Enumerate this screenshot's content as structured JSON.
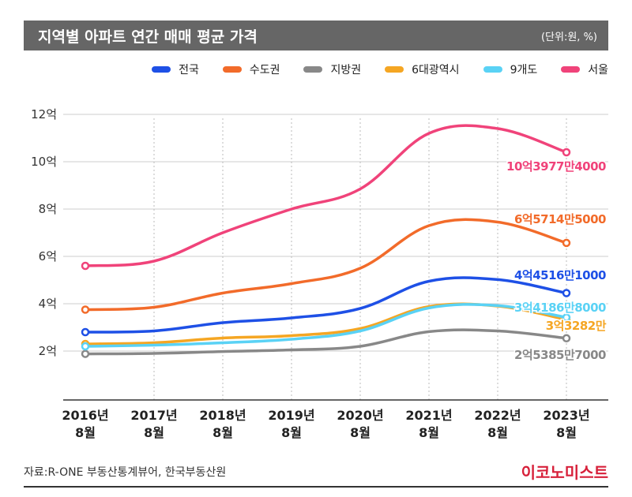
{
  "header": {
    "title": "지역별 아파트 연간 매매 평균 가격",
    "unit": "(단위:원, %)"
  },
  "footer": {
    "source": "자료:R-ONE 부동산통계뷰어, 한국부동산원",
    "brand": "이코노미스트"
  },
  "chart_data": {
    "type": "line",
    "title": "지역별 아파트 연간 매매 평균 가격",
    "legend_position": "top-right",
    "grid": true,
    "ylim": [
      0,
      12
    ],
    "y_ticks": [
      {
        "value": 2,
        "label": "2억"
      },
      {
        "value": 4,
        "label": "4억"
      },
      {
        "value": 6,
        "label": "6억"
      },
      {
        "value": 8,
        "label": "8억"
      },
      {
        "value": 10,
        "label": "10억"
      },
      {
        "value": 12,
        "label": "12억"
      }
    ],
    "categories": [
      {
        "year": "2016년",
        "month": "8월"
      },
      {
        "year": "2017년",
        "month": "8월"
      },
      {
        "year": "2018년",
        "month": "8월"
      },
      {
        "year": "2019년",
        "month": "8월"
      },
      {
        "year": "2020년",
        "month": "8월"
      },
      {
        "year": "2021년",
        "month": "8월"
      },
      {
        "year": "2022년",
        "month": "8월"
      },
      {
        "year": "2023년",
        "month": "8월"
      }
    ],
    "series": [
      {
        "name": "서울",
        "color": "#f0437a",
        "values": [
          5.6,
          5.8,
          7.0,
          8.0,
          8.85,
          11.2,
          11.4,
          10.4
        ],
        "end_label": "10억3977만4000"
      },
      {
        "name": "수도권",
        "color": "#f26b2a",
        "values": [
          3.75,
          3.85,
          4.45,
          4.85,
          5.5,
          7.3,
          7.45,
          6.57
        ],
        "end_label": "6억5714만5000"
      },
      {
        "name": "전국",
        "color": "#1e50e6",
        "values": [
          2.8,
          2.85,
          3.2,
          3.4,
          3.8,
          4.95,
          5.02,
          4.45
        ],
        "end_label": "4억4516만1000"
      },
      {
        "name": "9개도",
        "color": "#5ad2f5",
        "values": [
          2.2,
          2.25,
          2.35,
          2.5,
          2.85,
          3.82,
          3.92,
          3.42
        ],
        "end_label": "3억4186만8000"
      },
      {
        "name": "6대광역시",
        "color": "#f5a623",
        "values": [
          2.3,
          2.35,
          2.55,
          2.65,
          2.95,
          3.88,
          3.9,
          3.33
        ],
        "end_label": "3억3282만"
      },
      {
        "name": "지방권",
        "color": "#888888",
        "values": [
          1.88,
          1.9,
          1.98,
          2.05,
          2.2,
          2.82,
          2.85,
          2.54
        ],
        "end_label": "2억5385만7000"
      }
    ]
  },
  "legend": [
    {
      "name": "전국",
      "color": "#1e50e6"
    },
    {
      "name": "수도권",
      "color": "#f26b2a"
    },
    {
      "name": "지방권",
      "color": "#888888"
    },
    {
      "name": "6대광역시",
      "color": "#f5a623"
    },
    {
      "name": "9개도",
      "color": "#5ad2f5"
    },
    {
      "name": "서울",
      "color": "#f0437a"
    }
  ]
}
